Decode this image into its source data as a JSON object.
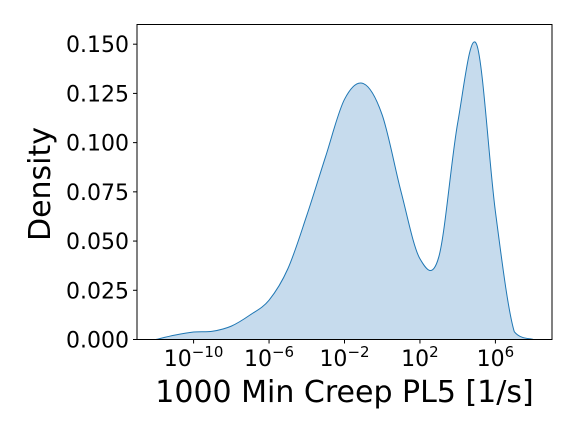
{
  "chart_data": {
    "type": "area",
    "title": "",
    "xlabel": "1000 Min Creep PL5 [1/s]",
    "ylabel": "Density",
    "x_scale": "log",
    "xlim": [
      1e-13,
      1000000000.0
    ],
    "ylim": [
      0,
      0.16
    ],
    "grid": false,
    "legend": "none",
    "x_ticks": [
      {
        "value": 1e-10,
        "base": "10",
        "exp": "−10"
      },
      {
        "value": 1e-06,
        "base": "10",
        "exp": "−6"
      },
      {
        "value": 0.01,
        "base": "10",
        "exp": "−2"
      },
      {
        "value": 100,
        "base": "10",
        "exp": "2"
      },
      {
        "value": 1000000.0,
        "base": "10",
        "exp": "6"
      }
    ],
    "y_ticks": [
      {
        "value": 0,
        "label": "0.000"
      },
      {
        "value": 0.025,
        "label": "0.025"
      },
      {
        "value": 0.05,
        "label": "0.050"
      },
      {
        "value": 0.075,
        "label": "0.075"
      },
      {
        "value": 0.1,
        "label": "0.100"
      },
      {
        "value": 0.125,
        "label": "0.125"
      },
      {
        "value": 0.15,
        "label": "0.150"
      }
    ],
    "series": [
      {
        "x": [
          1e-12,
          1e-11,
          1e-10,
          1e-09,
          1e-08,
          1e-07,
          1e-06,
          1e-05,
          0.0001,
          0.001,
          0.01,
          0.1,
          1,
          10,
          100,
          1000,
          10000,
          100000.0,
          1000000.0,
          10000000.0,
          100000000.0
        ],
        "y": [
          0.0,
          0.0022,
          0.0038,
          0.0042,
          0.0068,
          0.0125,
          0.02,
          0.036,
          0.063,
          0.093,
          0.122,
          0.13,
          0.114,
          0.075,
          0.041,
          0.042,
          0.11,
          0.15,
          0.065,
          0.004,
          0.0
        ],
        "color": "#1f77b4",
        "fill": "#c6dbed"
      }
    ]
  }
}
